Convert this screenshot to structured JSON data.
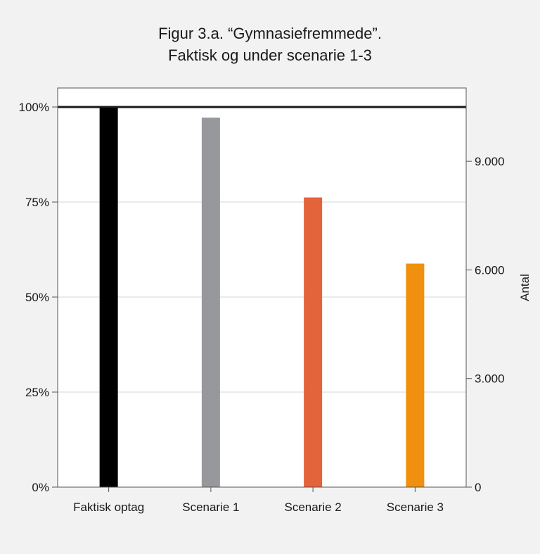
{
  "chart_data": {
    "type": "bar",
    "title": [
      "Figur 3.a. “Gymnasiefremmede”.",
      "Faktisk og under scenarie 1-3"
    ],
    "categories": [
      "Faktisk optag",
      "Scenarie 1",
      "Scenarie 2",
      "Scenarie 3"
    ],
    "values": [
      100,
      97.2,
      76.2,
      58.8
    ],
    "colors": [
      "#000000",
      "#97989b",
      "#e4633a",
      "#f0900f"
    ],
    "units": "%",
    "ylim": [
      0,
      105
    ],
    "yticks": [
      0,
      25,
      50,
      75,
      100
    ],
    "ytick_labels": [
      "0%",
      "25%",
      "50%",
      "75%",
      "100%"
    ],
    "y2lim": [
      0,
      11025
    ],
    "y2ticks": [
      0,
      3000,
      6000,
      9000
    ],
    "y2tick_labels": [
      "0",
      "3.000",
      "6.000",
      "9.000"
    ],
    "y2label": "Antal",
    "reference_line": 100,
    "grid": true,
    "legend": "none"
  }
}
